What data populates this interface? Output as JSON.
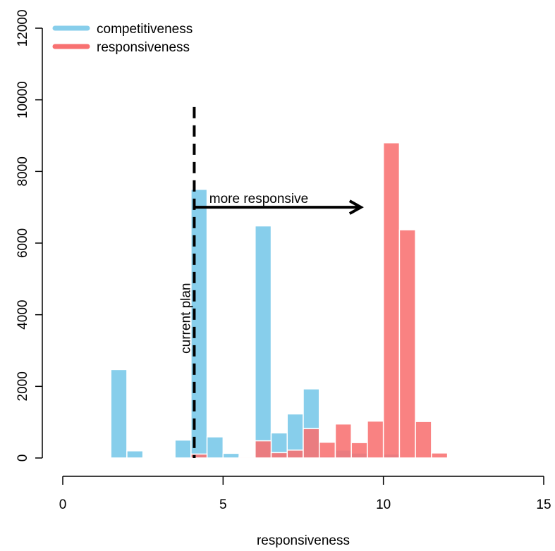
{
  "chart_data": {
    "type": "bar",
    "xlabel": "responsiveness",
    "ylabel": "",
    "xlim": [
      0,
      15
    ],
    "ylim": [
      0,
      12000
    ],
    "x_ticks": [
      "0",
      "5",
      "10",
      "15"
    ],
    "y_ticks": [
      "0",
      "2000",
      "4000",
      "6000",
      "8000",
      "10000",
      "12000"
    ],
    "bin_width": 0.5,
    "legend_position": "top-left",
    "series": [
      {
        "name": "competitiveness",
        "color": "#87CEEB",
        "bins": [
          {
            "x0": 1.5,
            "value": 2470
          },
          {
            "x0": 2.0,
            "value": 200
          },
          {
            "x0": 2.5,
            "value": 20
          },
          {
            "x0": 3.0,
            "value": 20
          },
          {
            "x0": 3.5,
            "value": 500
          },
          {
            "x0": 4.0,
            "value": 7500
          },
          {
            "x0": 4.5,
            "value": 590
          },
          {
            "x0": 5.0,
            "value": 130
          },
          {
            "x0": 5.5,
            "value": 30
          },
          {
            "x0": 6.0,
            "value": 6480
          },
          {
            "x0": 6.5,
            "value": 700
          },
          {
            "x0": 7.0,
            "value": 1230
          },
          {
            "x0": 7.5,
            "value": 1930
          },
          {
            "x0": 8.0,
            "value": 50
          },
          {
            "x0": 8.5,
            "value": 220
          },
          {
            "x0": 9.0,
            "value": 140
          },
          {
            "x0": 9.5,
            "value": 30
          },
          {
            "x0": 10.0,
            "value": 110
          }
        ]
      },
      {
        "name": "responsiveness",
        "color": "#F87171",
        "bins": [
          {
            "x0": 4.0,
            "value": 110
          },
          {
            "x0": 5.5,
            "value": 30
          },
          {
            "x0": 6.0,
            "value": 480
          },
          {
            "x0": 6.5,
            "value": 150
          },
          {
            "x0": 7.0,
            "value": 220
          },
          {
            "x0": 7.5,
            "value": 820
          },
          {
            "x0": 8.0,
            "value": 440
          },
          {
            "x0": 8.5,
            "value": 950
          },
          {
            "x0": 9.0,
            "value": 430
          },
          {
            "x0": 9.5,
            "value": 1030
          },
          {
            "x0": 10.0,
            "value": 8800
          },
          {
            "x0": 10.5,
            "value": 6370
          },
          {
            "x0": 11.0,
            "value": 1020
          },
          {
            "x0": 11.5,
            "value": 140
          }
        ]
      }
    ],
    "annotations": {
      "vline": {
        "x": 4.1,
        "y_top": 9800,
        "label": "current plan"
      },
      "arrow": {
        "x_start": 4.1,
        "x_end": 9.3,
        "y": 7000,
        "label": "more responsive"
      }
    }
  }
}
